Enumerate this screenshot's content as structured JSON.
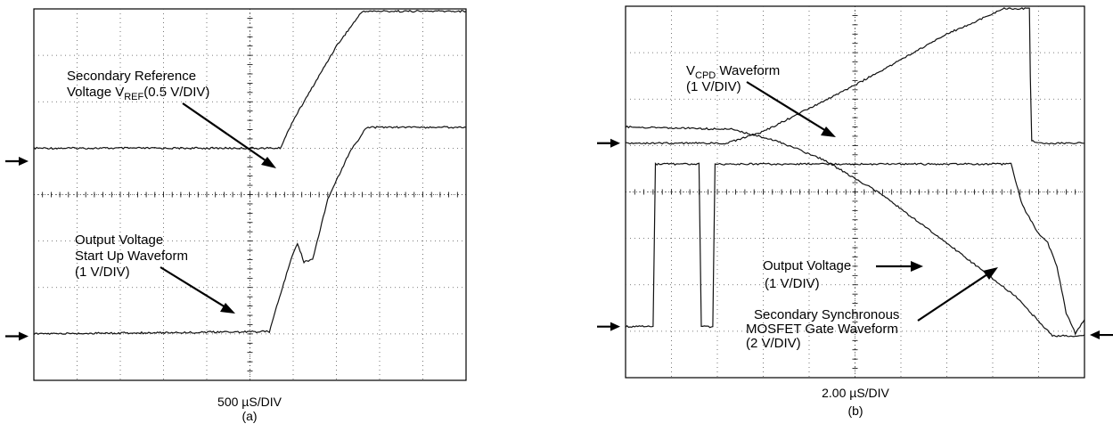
{
  "charts": [
    {
      "id": "a",
      "caption": "(a)",
      "timebase": "500 µS/DIV",
      "annotations": [
        {
          "lines": [
            "Secondary Reference",
            "Voltage V_REF(0.5 V/DIV)"
          ]
        },
        {
          "lines": [
            "Output Voltage",
            "Start Up Waveform",
            "(1 V/DIV)"
          ]
        }
      ],
      "chart_data": {
        "type": "line",
        "grid": true,
        "divisions": {
          "x": 10,
          "y": 8
        },
        "xlim": [
          0,
          10
        ],
        "ylim": [
          0,
          8
        ],
        "series": [
          {
            "x": [
              0,
              5.7,
              6.0,
              6.5,
              7.0,
              7.6,
              8.0,
              10.0
            ],
            "y": [
              5.0,
              5.0,
              5.6,
              6.4,
              7.2,
              7.95,
              7.95,
              7.95
            ]
          },
          {
            "x": [
              0,
              5.45,
              5.65,
              5.95,
              6.1,
              6.25,
              6.45,
              6.8,
              7.3,
              7.7,
              8.0,
              10.0
            ],
            "y": [
              1.0,
              1.05,
              1.7,
              2.6,
              2.95,
              2.55,
              2.6,
              3.9,
              4.9,
              5.45,
              5.45,
              5.45
            ]
          }
        ],
        "markers": [
          {
            "side": "left",
            "y": 4.72
          },
          {
            "side": "left",
            "y": 0.95
          }
        ]
      }
    },
    {
      "id": "b",
      "caption": "(b)",
      "timebase": "2.00 µS/DIV",
      "annotations": [
        {
          "lines": [
            "V_CPD Waveform",
            "(1 V/DIV)"
          ]
        },
        {
          "lines": [
            "Output Voltage",
            "(1 V/DIV)"
          ]
        },
        {
          "lines": [
            "Secondary Synchronous",
            "MOSFET Gate Waveform",
            "(2 V/DIV)"
          ]
        }
      ],
      "chart_data": {
        "type": "line",
        "grid": true,
        "divisions": {
          "x": 10,
          "y": 8
        },
        "xlim": [
          0,
          10
        ],
        "ylim": [
          0,
          8
        ],
        "series": [
          {
            "x": [
              0,
              1.0,
              2.2,
              3.0,
              5.0,
              7.0,
              8.25,
              8.8,
              8.82,
              8.85,
              9.0,
              10.0
            ],
            "y": [
              5.05,
              5.05,
              5.05,
              5.3,
              6.3,
              7.4,
              7.95,
              7.95,
              6.5,
              5.1,
              5.05,
              5.05
            ]
          },
          {
            "x": [
              0,
              2.3,
              3.3,
              4.3,
              5.5,
              7.0,
              8.5,
              9.3,
              9.8,
              10.0
            ],
            "y": [
              5.4,
              5.35,
              5.1,
              4.7,
              4.0,
              2.9,
              1.75,
              0.9,
              0.9,
              0.92
            ]
          },
          {
            "x": [
              0,
              0.6,
              0.65,
              1.6,
              1.65,
              1.9,
              1.95,
              8.4,
              8.65,
              9.0,
              9.2,
              9.4,
              9.6,
              9.8,
              10.0
            ],
            "y": [
              1.1,
              1.1,
              4.6,
              4.6,
              1.1,
              1.1,
              4.6,
              4.6,
              3.7,
              3.1,
              2.9,
              2.4,
              1.4,
              0.95,
              1.25
            ]
          }
        ],
        "markers": [
          {
            "side": "left",
            "y": 5.05
          },
          {
            "side": "left",
            "y": 1.1
          },
          {
            "side": "right",
            "y": 0.92
          }
        ]
      }
    }
  ]
}
